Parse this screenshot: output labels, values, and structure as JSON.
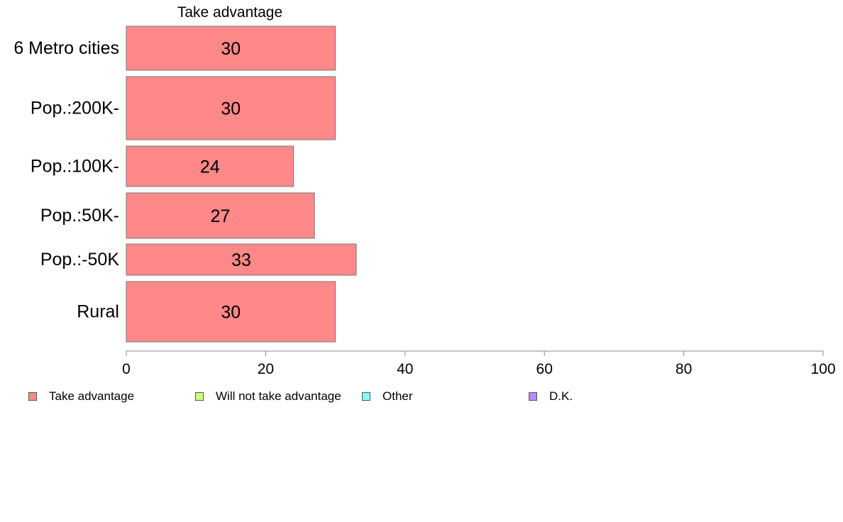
{
  "chart_data": {
    "type": "bar",
    "orientation": "horizontal",
    "panel_title": "Take advantage",
    "categories": [
      "6 Metro cities",
      "Pop.:200K-",
      "Pop.:100K-",
      "Pop.:50K-",
      "Pop.:-50K",
      "Rural"
    ],
    "series": [
      {
        "name": "Take advantage",
        "values": [
          30,
          30,
          24,
          27,
          33,
          30
        ],
        "color": "#ff8888"
      }
    ],
    "data_labels": [
      "30",
      "30",
      "24",
      "27",
      "33",
      "30"
    ],
    "xlim": [
      0,
      100
    ],
    "x_ticks": [
      "0",
      "20",
      "40",
      "60",
      "80",
      "100"
    ],
    "xlabel": "",
    "ylabel": "",
    "grid": false,
    "legend_position": "bottom",
    "legend": [
      {
        "label": "Take advantage",
        "color": "#ff8888"
      },
      {
        "label": "Will not take advantage",
        "color": "#ccff88"
      },
      {
        "label": "Other",
        "color": "#88ffff"
      },
      {
        "label": "D.K.",
        "color": "#bb88ff"
      }
    ]
  }
}
